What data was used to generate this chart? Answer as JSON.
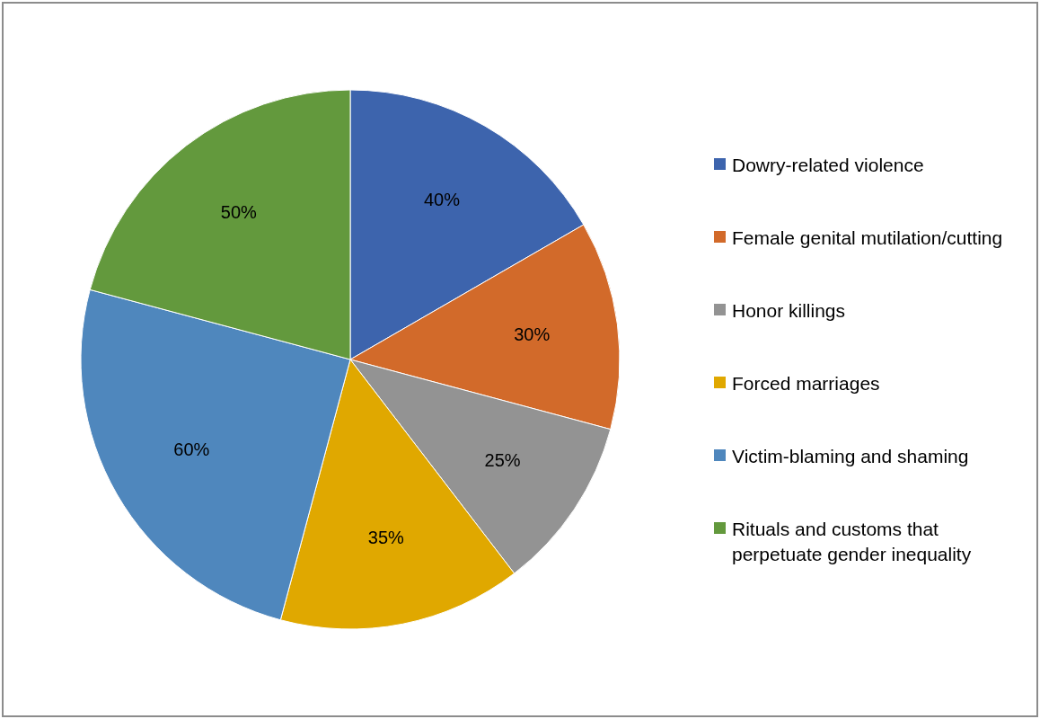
{
  "chart_data": {
    "type": "pie",
    "categories": [
      "Dowry-related violence",
      "Female genital mutilation/cutting",
      "Honor killings",
      "Forced marriages",
      "Victim-blaming and shaming",
      "Rituals and customs that perpetuate gender inequality"
    ],
    "values": [
      40,
      30,
      25,
      35,
      60,
      50
    ],
    "value_labels": [
      "40%",
      "30%",
      "25%",
      "35%",
      "60%",
      "50%"
    ],
    "colors": [
      "#3d64ad",
      "#d26a2a",
      "#939393",
      "#e0a800",
      "#4f87bd",
      "#63993d"
    ],
    "legend": "right"
  }
}
